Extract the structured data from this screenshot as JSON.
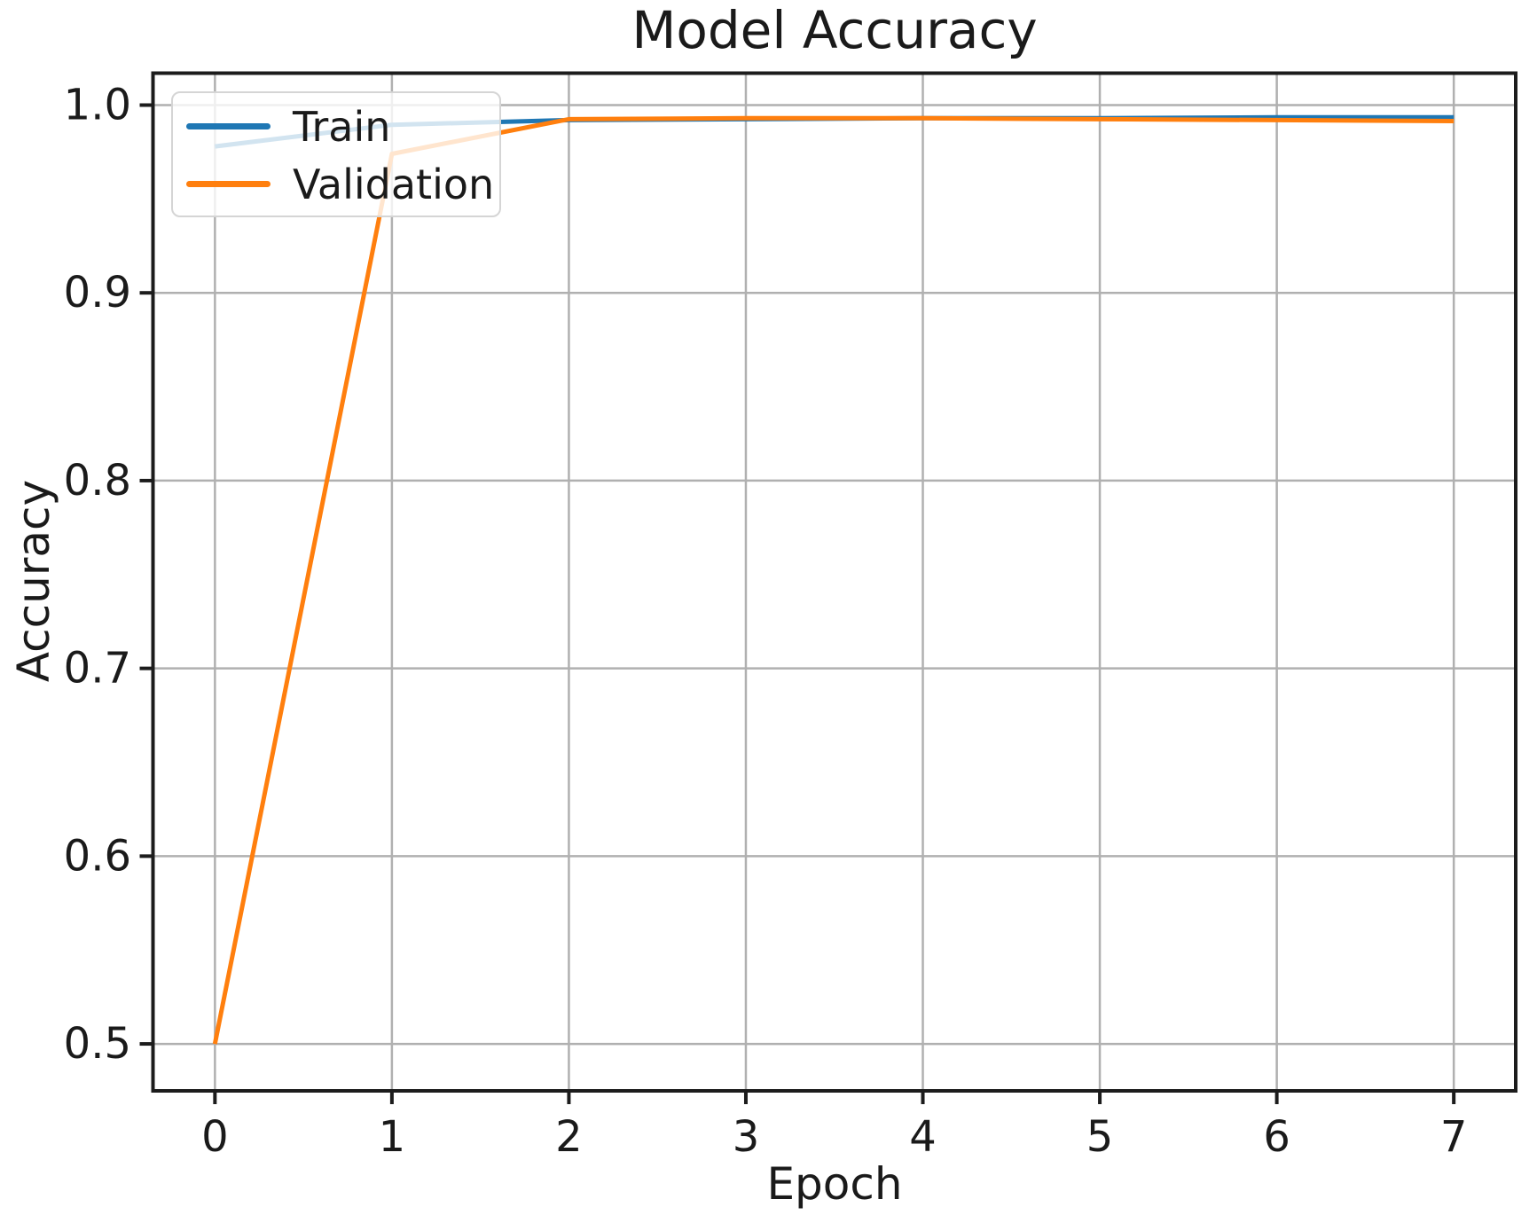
{
  "figure": {
    "title": "Model Accuracy",
    "x_axis_label": "Epoch",
    "y_axis_label": "Accuracy"
  },
  "legend": {
    "position": "upper left",
    "entries": [
      {
        "label": "Train",
        "color": "#1f77b4"
      },
      {
        "label": "Validation",
        "color": "#ff7f0e"
      }
    ]
  },
  "chart_data": {
    "type": "line",
    "title": "Model Accuracy",
    "xlabel": "Epoch",
    "ylabel": "Accuracy",
    "x": [
      0,
      1,
      2,
      3,
      4,
      5,
      6,
      7
    ],
    "series": [
      {
        "name": "Train",
        "color": "#1f77b4",
        "values": [
          0.978,
          0.9895,
          0.992,
          0.9925,
          0.993,
          0.993,
          0.9935,
          0.9935
        ]
      },
      {
        "name": "Validation",
        "color": "#ff7f0e",
        "values": [
          0.5,
          0.974,
          0.9925,
          0.993,
          0.993,
          0.9925,
          0.992,
          0.9915
        ]
      }
    ],
    "xlim": [
      -0.35,
      7.35
    ],
    "ylim": [
      0.475,
      1.017
    ],
    "xticks": [
      0,
      1,
      2,
      3,
      4,
      5,
      6,
      7
    ],
    "xtick_labels": [
      "0",
      "1",
      "2",
      "3",
      "4",
      "5",
      "6",
      "7"
    ],
    "yticks": [
      0.5,
      0.6,
      0.7,
      0.8,
      0.9,
      1.0
    ],
    "ytick_labels": [
      "0.5",
      "0.6",
      "0.7",
      "0.8",
      "0.9",
      "1.0"
    ],
    "grid": true,
    "legend_position": "upper left"
  },
  "colors": {
    "train_line": "#1f77b4",
    "validation_line": "#ff7f0e",
    "grid": "#b0b0b0",
    "spine": "#1c1c1c",
    "text": "#1a1a1a",
    "background": "#ffffff",
    "legend_border": "#d5d5d5"
  }
}
